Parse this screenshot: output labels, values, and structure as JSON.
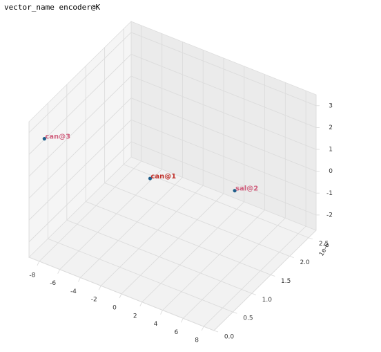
{
  "chart_data": {
    "type": "scatter3d",
    "title": "vector_name encoder@K",
    "xlim": [
      -9,
      9
    ],
    "ylim": [
      0,
      2.7
    ],
    "zlim": [
      -2.7,
      3.5
    ],
    "xticks": [
      -8,
      -6,
      -4,
      -2,
      0,
      2,
      4,
      6,
      8
    ],
    "yticks": [
      {
        "value": 0,
        "label": "0.0"
      },
      {
        "value": 0.5,
        "label": "0.5"
      },
      {
        "value": 1,
        "label": "1.0"
      },
      {
        "value": 1.5,
        "label": "1.5"
      },
      {
        "value": 2,
        "label": "2.0"
      },
      {
        "value": 2.5,
        "label": "2.5"
      }
    ],
    "y_offset_label": "1e-6",
    "zticks": [
      -2,
      -1,
      0,
      1,
      2,
      3
    ],
    "grid": true,
    "color": "#1f5f8b",
    "points": {
      "labels": [
        "can@3",
        "can@1",
        "sal@2"
      ],
      "x": [
        -7.5,
        -2,
        5.5
      ],
      "y": [
        0,
        1.3,
        1.5
      ],
      "z": [
        3,
        0,
        0.5
      ],
      "label_colors": [
        "#d0607e",
        "#c0302a",
        "#d0607e"
      ]
    }
  }
}
